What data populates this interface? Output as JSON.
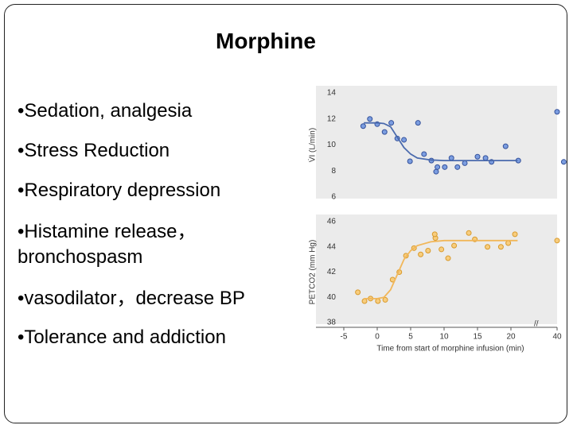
{
  "title": "Morphine",
  "bullets": [
    "•Sedation, analgesia",
    "•Stress Reduction",
    "•Respiratory depression",
    "•Histamine release，bronchospasm",
    "•vasodilator，decrease BP",
    "•Tolerance and addiction"
  ],
  "chart_data": [
    {
      "type": "scatter",
      "y_label": "V̇I (L/min)",
      "xlim": [
        -5,
        40
      ],
      "axis_break": [
        21.5,
        39
      ],
      "ylim": [
        6,
        14
      ],
      "yticks": [
        6,
        8,
        10,
        12,
        14
      ],
      "series": [
        {
          "mode": "markers",
          "color": "#7b9de0",
          "edge": "#34519a",
          "x": [
            -2.1,
            -1.1,
            0,
            1.1,
            2.1,
            3.0,
            4.0,
            4.9,
            6.1,
            7.0,
            8.1,
            9.0,
            10.1,
            11.1,
            12.0,
            13.1,
            15,
            16.2,
            17.1,
            19.2,
            21.1,
            21.9,
            40,
            41
          ],
          "values": [
            11.45,
            12.0,
            11.6,
            11.0,
            11.7,
            10.5,
            10.4,
            8.75,
            11.7,
            9.3,
            8.8,
            8.3,
            8.3,
            9.0,
            8.3,
            8.6,
            9.1,
            9.0,
            8.7,
            9.9,
            8.8,
            7.95,
            12.55,
            8.7
          ]
        },
        {
          "mode": "lines",
          "color": "#4a6aad",
          "x": [
            -2,
            0,
            1,
            2,
            3,
            4,
            5,
            6,
            8,
            10,
            15,
            21
          ],
          "values": [
            11.7,
            11.7,
            11.65,
            11.4,
            10.6,
            9.8,
            9.3,
            9.0,
            8.85,
            8.8,
            8.8,
            8.8
          ]
        }
      ]
    },
    {
      "type": "scatter",
      "y_label": "PETCO2 (mm Hg)",
      "x_label": "Time from start of morphine infusion (min)",
      "xlim": [
        -5,
        40
      ],
      "axis_break": [
        21.5,
        39
      ],
      "xticks": [
        -5,
        0,
        5,
        10,
        15,
        20,
        40
      ],
      "ylim": [
        38,
        46
      ],
      "yticks": [
        38,
        40,
        42,
        44,
        46
      ],
      "series": [
        {
          "mode": "markers",
          "color": "#f7cd7e",
          "edge": "#d99a2b",
          "x": [
            -2.9,
            -1.9,
            -1.0,
            0.1,
            1.2,
            2.3,
            3.3,
            4.3,
            5.5,
            6.5,
            7.6,
            8.7,
            9.6,
            10.6,
            11.5,
            13.7,
            14.6,
            16.5,
            18.5,
            19.6,
            20.6,
            21.7,
            40
          ],
          "values": [
            40.4,
            39.7,
            39.9,
            39.7,
            39.8,
            41.4,
            42.0,
            43.3,
            43.9,
            43.4,
            43.7,
            44.7,
            43.8,
            43.1,
            44.1,
            45.1,
            44.6,
            44.0,
            44.0,
            44.3,
            45.0,
            45.0,
            44.5
          ]
        },
        {
          "mode": "lines",
          "color": "#f1b75a",
          "x": [
            -2,
            0,
            1,
            2,
            3,
            4,
            5,
            6,
            8,
            10,
            15,
            21
          ],
          "values": [
            39.9,
            39.9,
            40.0,
            40.6,
            41.8,
            43.0,
            43.7,
            44.1,
            44.4,
            44.5,
            44.5,
            44.5
          ]
        }
      ]
    }
  ]
}
